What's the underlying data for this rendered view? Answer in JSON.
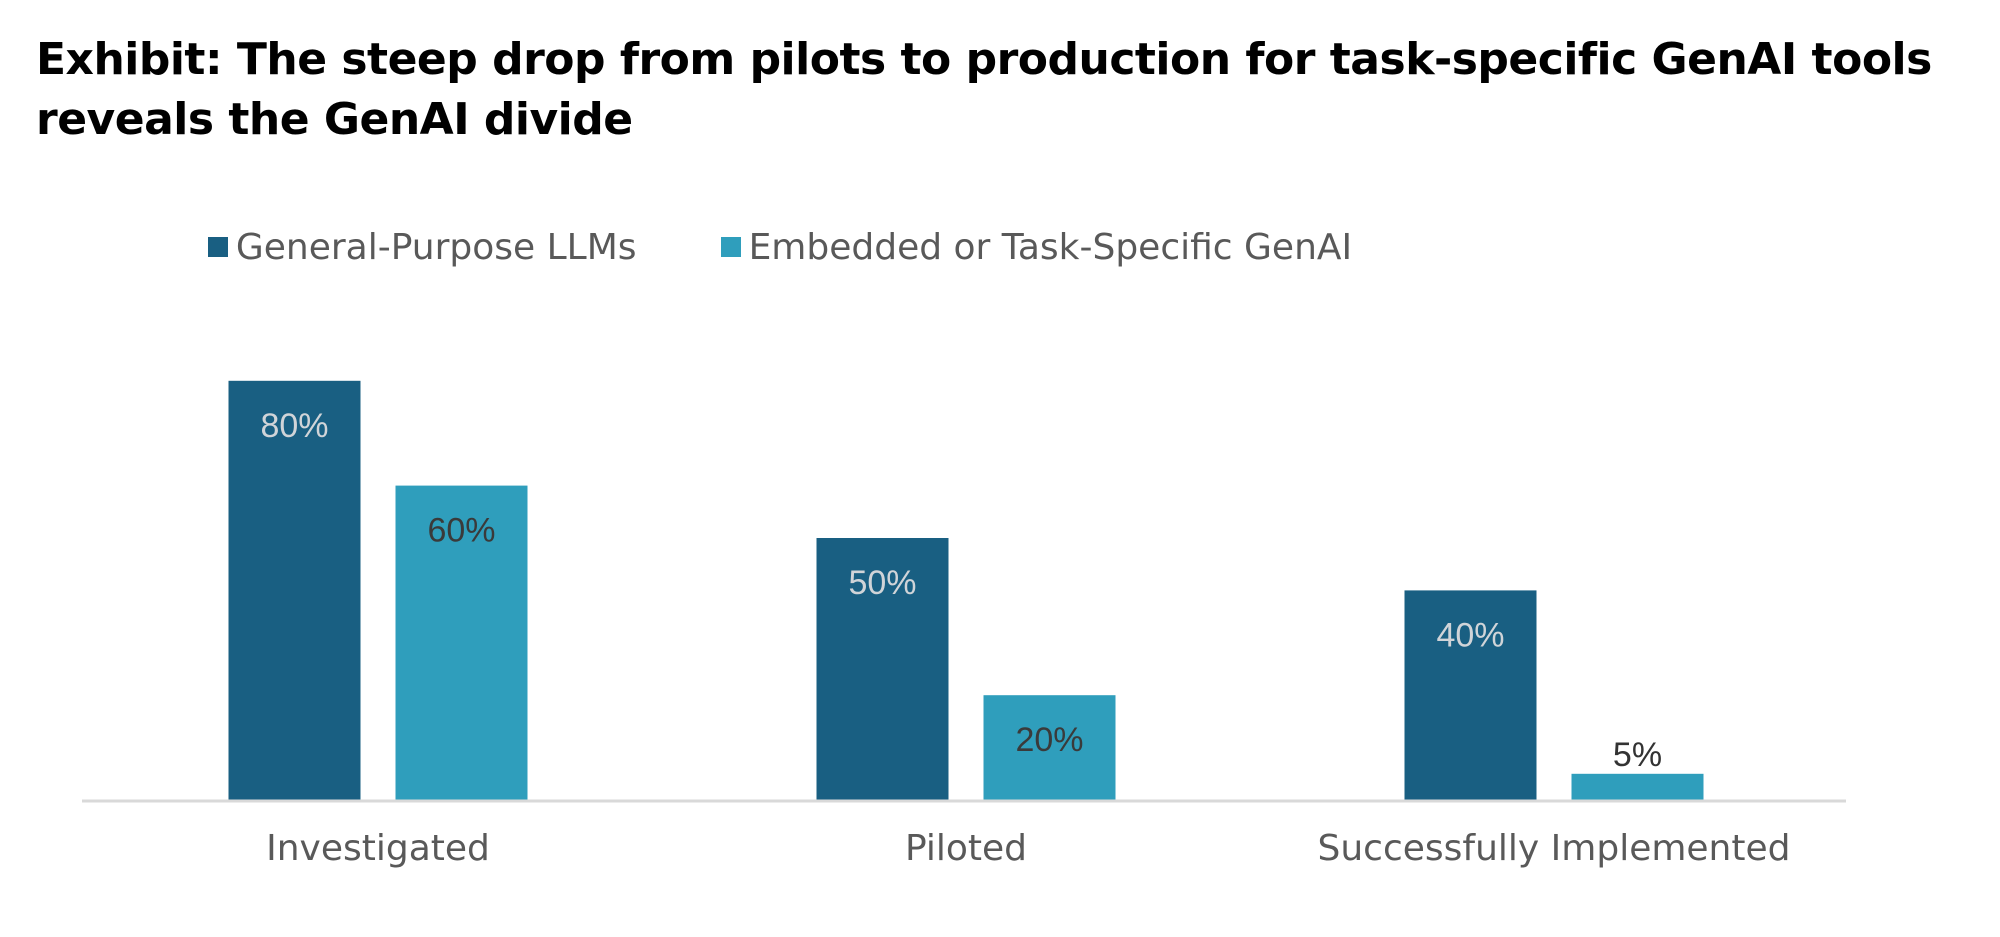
{
  "chart_data": {
    "type": "bar",
    "title": "Exhibit: The steep drop from pilots to production for task-specific GenAI tools reveals the GenAI divide",
    "categories": [
      "Investigated",
      "Piloted",
      "Successfully Implemented"
    ],
    "series": [
      {
        "name": "General-Purpose LLMs",
        "values": [
          80,
          50,
          40
        ],
        "labels": [
          "80%",
          "50%",
          "40%"
        ],
        "color": "#195f82",
        "label_color": "#d0d4d8"
      },
      {
        "name": "Embedded or Task-Specific GenAI",
        "values": [
          60,
          20,
          5
        ],
        "labels": [
          "60%",
          "20%",
          "5%"
        ],
        "color": "#2f9ebc",
        "label_color": "#3a3a3a"
      }
    ],
    "ylim": [
      0,
      100
    ],
    "grid": false,
    "legend_position": "top"
  }
}
